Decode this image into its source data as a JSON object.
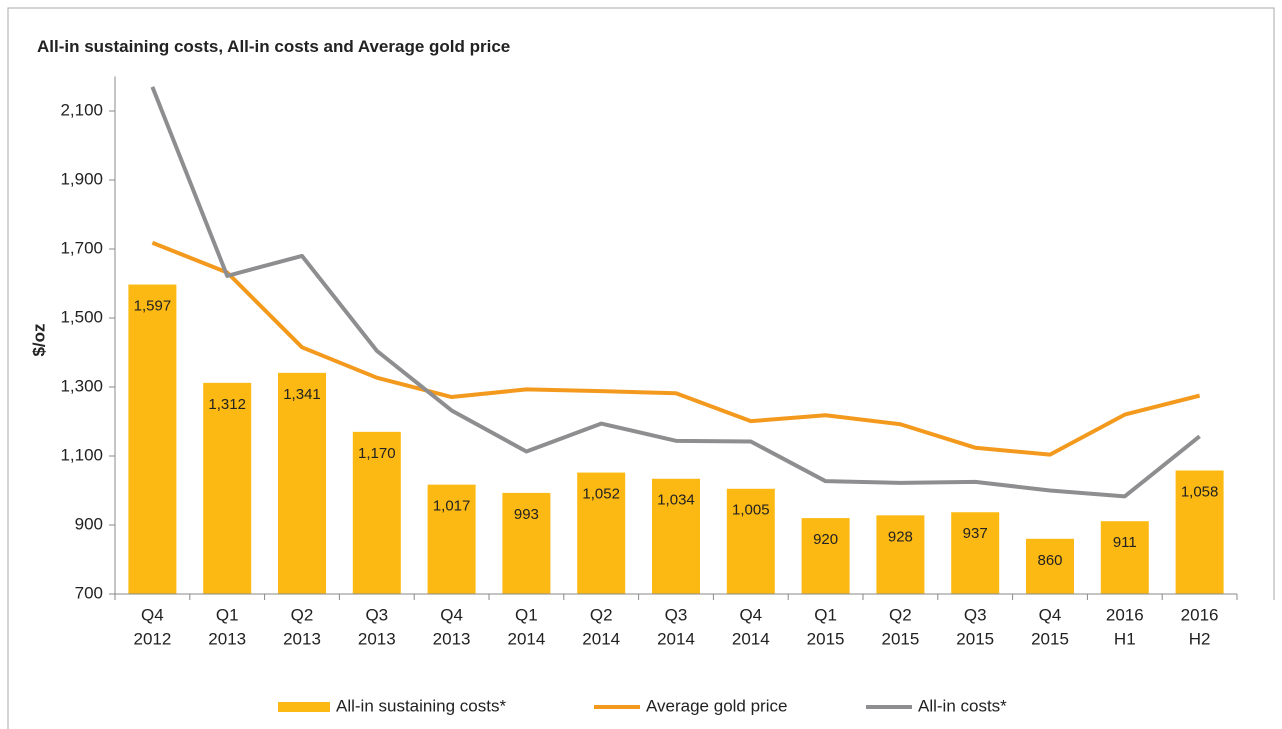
{
  "chart_data": {
    "type": "bar",
    "title": "All-in sustaining costs, All-in costs and Average gold price",
    "y_label": "$/oz",
    "categories": [
      [
        "Q4",
        "2012"
      ],
      [
        "Q1",
        "2013"
      ],
      [
        "Q2",
        "2013"
      ],
      [
        "Q3",
        "2013"
      ],
      [
        "Q4",
        "2013"
      ],
      [
        "Q1",
        "2014"
      ],
      [
        "Q2",
        "2014"
      ],
      [
        "Q3",
        "2014"
      ],
      [
        "Q4",
        "2014"
      ],
      [
        "Q1",
        "2015"
      ],
      [
        "Q2",
        "2015"
      ],
      [
        "Q3",
        "2015"
      ],
      [
        "Q4",
        "2015"
      ],
      [
        "2016",
        "H1"
      ],
      [
        "2016",
        "H2"
      ]
    ],
    "series": [
      {
        "name": "All-in sustaining costs*",
        "type": "bar",
        "color": "#FDB913",
        "values": [
          1597,
          1312,
          1341,
          1170,
          1017,
          993,
          1052,
          1034,
          1005,
          920,
          928,
          937,
          860,
          911,
          1058
        ],
        "value_labels": [
          "1,597",
          "1,312",
          "1,341",
          "1,170",
          "1,017",
          "993",
          "1,052",
          "1,034",
          "1,005",
          "920",
          "928",
          "937",
          "860",
          "911",
          "1,058"
        ]
      },
      {
        "name": "Average gold price",
        "type": "line",
        "color": "#F39A1E",
        "values": [
          1718,
          1632,
          1415,
          1327,
          1271,
          1293,
          1288,
          1282,
          1201,
          1218,
          1192,
          1124,
          1104,
          1220,
          1275
        ]
      },
      {
        "name": "All-in costs*",
        "type": "line",
        "color": "#8E8E90",
        "values": [
          2170,
          1622,
          1680,
          1405,
          1232,
          1113,
          1194,
          1144,
          1142,
          1027,
          1022,
          1025,
          1000,
          983,
          1157
        ]
      }
    ],
    "ylim": [
      700,
      2200
    ],
    "yticks": [
      700,
      900,
      {
        "value": 1100,
        "label": "1,100"
      },
      {
        "value": 1300,
        "label": "1,300"
      },
      {
        "value": 1500,
        "label": "1,500"
      },
      {
        "value": 1700,
        "label": "1,700"
      },
      {
        "value": 1900,
        "label": "1,900"
      },
      {
        "value": 2100,
        "label": "2,100"
      }
    ],
    "legend": "bottom"
  }
}
